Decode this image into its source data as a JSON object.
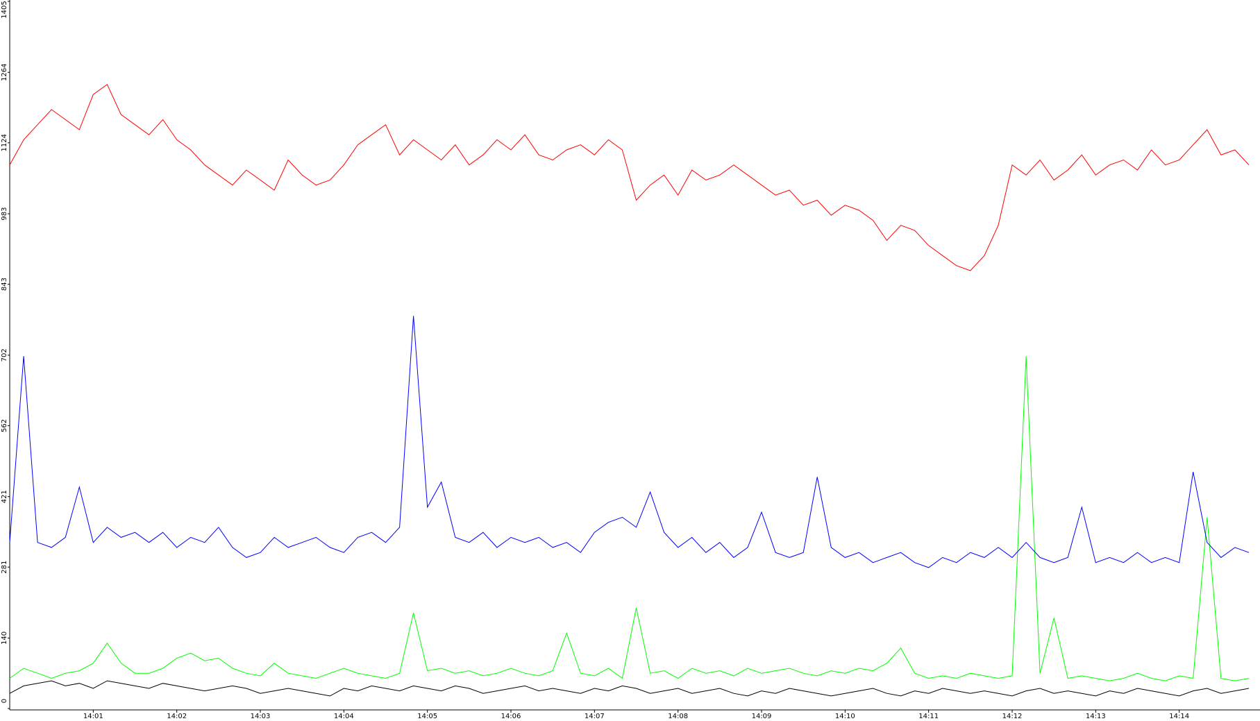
{
  "chart_data": {
    "type": "line",
    "x": [
      0,
      10,
      20,
      30,
      40,
      50,
      60,
      70,
      80,
      90,
      100,
      110,
      120,
      130,
      140,
      150,
      160,
      170,
      180,
      190,
      200,
      210,
      220,
      230,
      240,
      250,
      260,
      270,
      280,
      290,
      300,
      310,
      320,
      330,
      340,
      350,
      360,
      370,
      380,
      390,
      400,
      410,
      420,
      430,
      440,
      450,
      460,
      470,
      480,
      490,
      500,
      510,
      520,
      530,
      540,
      550,
      560,
      570,
      580,
      590,
      600,
      610,
      620,
      630,
      640,
      650,
      660,
      670,
      680,
      690,
      700,
      710,
      720,
      730,
      740,
      750,
      760,
      770,
      780,
      790,
      800,
      810,
      820,
      830,
      840,
      850,
      860,
      870,
      880,
      890
    ],
    "xlim": [
      0,
      898
    ],
    "xticks": [
      {
        "value": 60,
        "label": "14:01"
      },
      {
        "value": 120,
        "label": "14:02"
      },
      {
        "value": 180,
        "label": "14:03"
      },
      {
        "value": 240,
        "label": "14:04"
      },
      {
        "value": 300,
        "label": "14:05"
      },
      {
        "value": 360,
        "label": "14:06"
      },
      {
        "value": 420,
        "label": "14:07"
      },
      {
        "value": 480,
        "label": "14:08"
      },
      {
        "value": 540,
        "label": "14:09"
      },
      {
        "value": 600,
        "label": "14:10"
      },
      {
        "value": 660,
        "label": "14:11"
      },
      {
        "value": 720,
        "label": "14:12"
      },
      {
        "value": 780,
        "label": "14:13"
      },
      {
        "value": 840,
        "label": "14:14"
      }
    ],
    "ylim": [
      0,
      1405
    ],
    "yticks": [
      0,
      140,
      281,
      421,
      562,
      702,
      843,
      983,
      1124,
      1264,
      1405
    ],
    "series": [
      {
        "color": "#000000",
        "values": [
          30,
          45,
          50,
          55,
          45,
          50,
          40,
          55,
          50,
          45,
          40,
          50,
          45,
          40,
          35,
          40,
          45,
          40,
          30,
          35,
          40,
          35,
          30,
          25,
          40,
          35,
          45,
          40,
          35,
          45,
          40,
          35,
          45,
          40,
          30,
          35,
          40,
          45,
          35,
          40,
          35,
          30,
          40,
          35,
          45,
          40,
          30,
          35,
          40,
          30,
          35,
          40,
          30,
          25,
          35,
          30,
          40,
          35,
          30,
          25,
          30,
          35,
          40,
          30,
          25,
          35,
          30,
          40,
          35,
          30,
          35,
          30,
          25,
          35,
          40,
          30,
          35,
          30,
          25,
          35,
          30,
          40,
          35,
          30,
          25,
          35,
          40,
          30,
          35,
          40
        ]
      },
      {
        "color": "#00ff00",
        "values": [
          60,
          80,
          70,
          60,
          70,
          75,
          90,
          130,
          90,
          70,
          70,
          80,
          100,
          110,
          95,
          100,
          80,
          70,
          65,
          90,
          70,
          65,
          60,
          70,
          80,
          70,
          65,
          60,
          70,
          190,
          75,
          80,
          70,
          75,
          65,
          70,
          80,
          70,
          65,
          75,
          150,
          70,
          65,
          80,
          60,
          200,
          70,
          75,
          60,
          80,
          70,
          75,
          65,
          80,
          70,
          75,
          80,
          70,
          65,
          75,
          70,
          80,
          75,
          90,
          120,
          70,
          60,
          65,
          60,
          70,
          65,
          60,
          65,
          700,
          70,
          180,
          60,
          65,
          60,
          55,
          60,
          70,
          60,
          55,
          65,
          60,
          380,
          60,
          55,
          60
        ]
      },
      {
        "color": "#0000ff",
        "values": [
          330,
          700,
          330,
          320,
          340,
          440,
          330,
          360,
          340,
          350,
          330,
          350,
          320,
          340,
          330,
          360,
          320,
          300,
          310,
          340,
          320,
          330,
          340,
          320,
          310,
          340,
          350,
          330,
          360,
          780,
          400,
          450,
          340,
          330,
          350,
          320,
          340,
          330,
          340,
          320,
          330,
          310,
          350,
          370,
          380,
          360,
          430,
          350,
          320,
          340,
          310,
          330,
          300,
          320,
          390,
          310,
          300,
          310,
          460,
          320,
          300,
          310,
          290,
          300,
          310,
          290,
          280,
          300,
          290,
          310,
          300,
          320,
          300,
          330,
          300,
          290,
          300,
          400,
          290,
          300,
          290,
          310,
          290,
          300,
          290,
          470,
          330,
          300,
          320,
          310
        ]
      },
      {
        "color": "#ff0000",
        "values": [
          1080,
          1130,
          1160,
          1190,
          1170,
          1150,
          1220,
          1240,
          1180,
          1160,
          1140,
          1170,
          1130,
          1110,
          1080,
          1060,
          1040,
          1070,
          1050,
          1030,
          1090,
          1060,
          1040,
          1050,
          1080,
          1120,
          1140,
          1160,
          1100,
          1130,
          1110,
          1090,
          1120,
          1080,
          1100,
          1130,
          1110,
          1140,
          1100,
          1090,
          1110,
          1120,
          1100,
          1130,
          1110,
          1010,
          1040,
          1060,
          1020,
          1070,
          1050,
          1060,
          1080,
          1060,
          1040,
          1020,
          1030,
          1000,
          1010,
          980,
          1000,
          990,
          970,
          930,
          960,
          950,
          920,
          900,
          880,
          870,
          900,
          960,
          1080,
          1060,
          1090,
          1050,
          1070,
          1100,
          1060,
          1080,
          1090,
          1070,
          1110,
          1080,
          1090,
          1120,
          1150,
          1100,
          1110,
          1080
        ]
      }
    ]
  }
}
